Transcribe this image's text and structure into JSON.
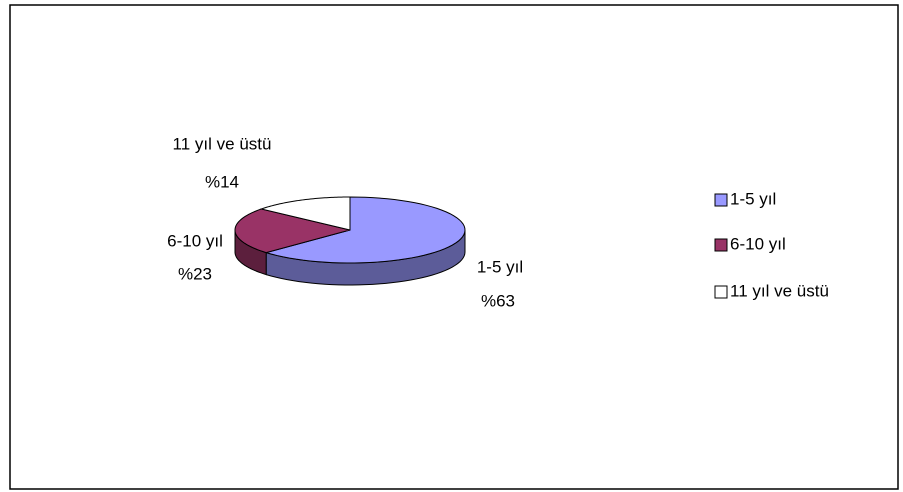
{
  "chart_data": {
    "type": "pie3d",
    "categories": [
      "1-5 yıl",
      "6-10 yıl",
      "11 yıl ve üstü"
    ],
    "values": [
      63,
      23,
      14
    ],
    "value_labels": [
      "%63",
      "%23",
      "%14"
    ],
    "colors": [
      "#9999ff",
      "#993366",
      "#ffffff"
    ],
    "legend": "right"
  }
}
